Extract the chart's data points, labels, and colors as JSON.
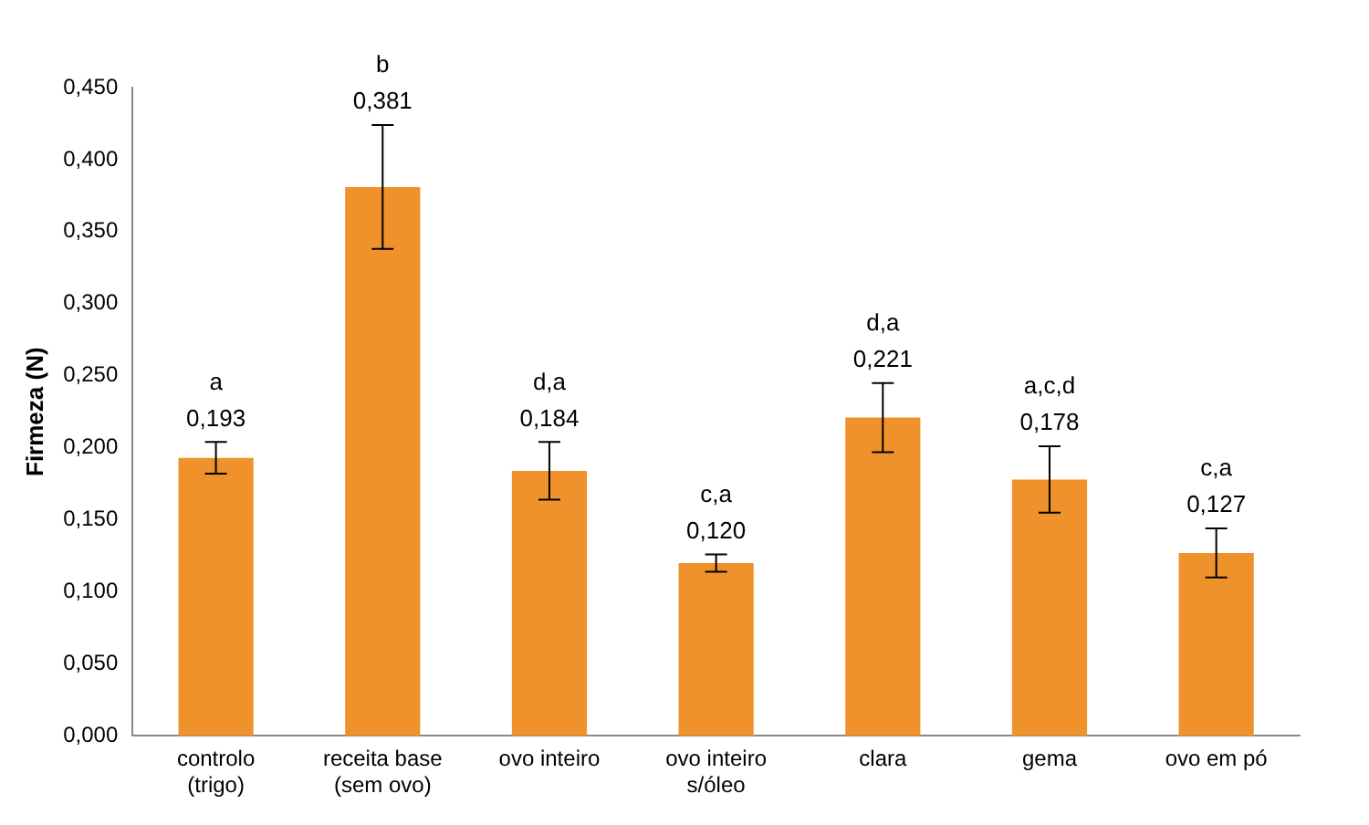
{
  "chart_data": {
    "type": "bar",
    "ylabel": "Firmeza (N)",
    "categories": [
      "controlo\n(trigo)",
      "receita base\n(sem ovo)",
      "ovo inteiro",
      "ovo inteiro\ns/óleo",
      "clara",
      "gema",
      "ovo em pó"
    ],
    "values": [
      0.193,
      0.381,
      0.184,
      0.12,
      0.221,
      0.178,
      0.127
    ],
    "errors": [
      0.011,
      0.043,
      0.02,
      0.006,
      0.024,
      0.023,
      0.017
    ],
    "value_labels": [
      "0,193",
      "0,381",
      "0,184",
      "0,120",
      "0,221",
      "0,178",
      "0,127"
    ],
    "color": "#f0922b",
    "ylim": [
      0,
      0.45
    ],
    "yticks": [
      {
        "value": 0,
        "label": "0,000"
      },
      {
        "value": 0.05,
        "label": "0,050"
      },
      {
        "value": 0.1,
        "label": "0,100"
      },
      {
        "value": 0.15,
        "label": "0,150"
      },
      {
        "value": 0.2,
        "label": "0,200"
      },
      {
        "value": 0.25,
        "label": "0,250"
      },
      {
        "value": 0.3,
        "label": "0,300"
      },
      {
        "value": 0.35,
        "label": "0,350"
      },
      {
        "value": 0.4,
        "label": "0,400"
      },
      {
        "value": 0.45,
        "label": "0,450"
      }
    ],
    "annotations": [
      "a",
      "b",
      "d,a",
      "c,a",
      "d,a",
      "a,c,d",
      "c,a"
    ],
    "grid": false,
    "legend": false
  }
}
